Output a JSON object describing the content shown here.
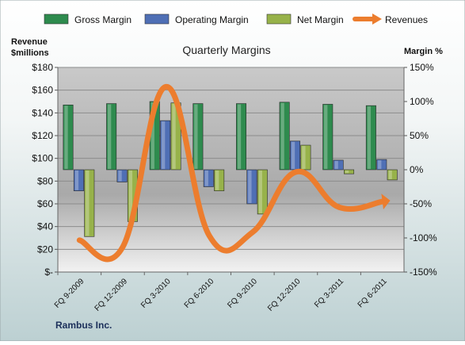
{
  "chart_data": {
    "type": "bar",
    "title": "Quarterly Margins",
    "company": "Rambus Inc.",
    "categories": [
      "FQ 9-2009",
      "FQ 12-2009",
      "FQ 3-2010",
      "FQ 6-2010",
      "FQ 9-2010",
      "FQ 12-2010",
      "FQ 3-2011",
      "FQ 6-2011"
    ],
    "left_axis": {
      "label_line1": "Revenue",
      "label_line2": "$millions",
      "min": 0,
      "max": 180,
      "step": 20,
      "tick_labels": [
        "$-",
        "$20",
        "$40",
        "$60",
        "$80",
        "$100",
        "$120",
        "$140",
        "$160",
        "$180"
      ]
    },
    "right_axis": {
      "label": "Margin %",
      "min": -150,
      "max": 150,
      "step": 50,
      "tick_labels": [
        "-150%",
        "-100%",
        "-50%",
        "0%",
        "50%",
        "100%",
        "150%"
      ]
    },
    "legend_position": "top",
    "series": [
      {
        "name": "Gross Margin",
        "type": "bar",
        "axis": "right",
        "color": "#2e8b4e",
        "values": [
          95,
          97,
          100,
          97,
          97,
          99,
          96,
          94
        ]
      },
      {
        "name": "Operating Margin",
        "type": "bar",
        "axis": "right",
        "color": "#4f6fb5",
        "values": [
          -31,
          -18,
          72,
          -25,
          -50,
          42,
          14,
          15
        ]
      },
      {
        "name": "Net Margin",
        "type": "bar",
        "axis": "right",
        "color": "#97b24a",
        "values": [
          -98,
          -76,
          98,
          -31,
          -65,
          36,
          -6,
          -15
        ]
      },
      {
        "name": "Revenues",
        "type": "line",
        "axis": "left",
        "color": "#ec7d2e",
        "values": [
          28,
          22,
          163,
          32,
          35,
          88,
          57,
          62
        ]
      }
    ]
  }
}
